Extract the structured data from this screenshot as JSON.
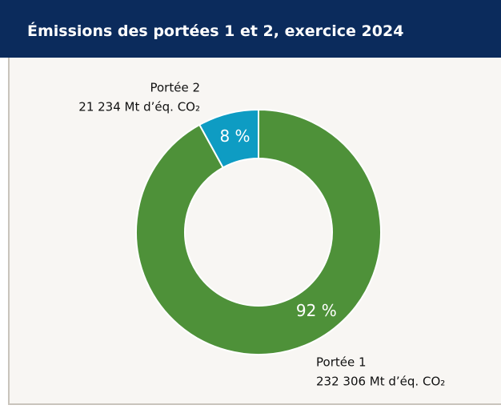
{
  "chart_data": {
    "type": "pie",
    "donut": true,
    "title": "Émissions des portées 1 et 2, exercice 2024",
    "categories": [
      "Portée 1",
      "Portée 2"
    ],
    "values": [
      92,
      8
    ],
    "value_labels": [
      "92 %",
      "8 %"
    ],
    "annotations": [
      "232 306 Mt d’éq. CO₂",
      "21 234 Mt d’éq. CO₂"
    ],
    "colors": [
      "#4e9139",
      "#0e9cc3"
    ]
  }
}
